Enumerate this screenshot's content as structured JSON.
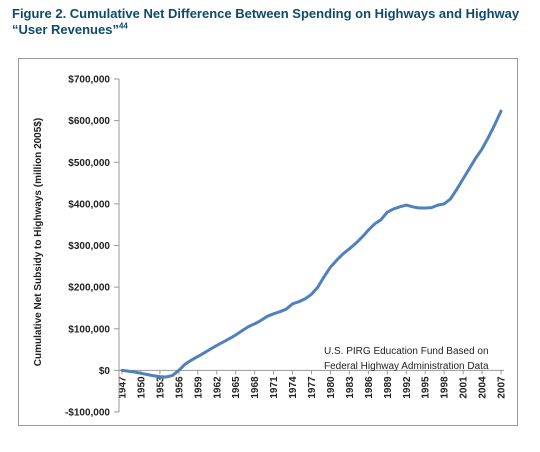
{
  "figure": {
    "title_line1": "Figure 2. Cumulative Net Difference Between Spending on Highways and Highway",
    "title_line2": "“User Revenues”",
    "title_footnote": "44"
  },
  "chart_data": {
    "type": "line",
    "title": "",
    "ylabel": "Cumulative Net Subsidy to Highways (million 2005$)",
    "xlabel": "",
    "ylim": [
      -100000,
      700000
    ],
    "yticks": [
      -100000,
      0,
      100000,
      200000,
      300000,
      400000,
      500000,
      600000,
      700000
    ],
    "ytick_labels": [
      "-$100,000",
      "$0",
      "$100,000",
      "$200,000",
      "$300,000",
      "$400,000",
      "$500,000",
      "$600,000",
      "$700,000"
    ],
    "xlim": [
      1947,
      2007
    ],
    "xticks": [
      1947,
      1950,
      1953,
      1956,
      1959,
      1962,
      1965,
      1968,
      1971,
      1974,
      1977,
      1980,
      1983,
      1986,
      1989,
      1992,
      1995,
      1998,
      2001,
      2004,
      2007
    ],
    "grid": false,
    "line_color": "#4f81bd",
    "annotation": [
      "U.S. PIRG Education Fund Based on",
      "Federal Highway Administration Data"
    ],
    "series": [
      {
        "name": "",
        "x": [
          1947,
          1948,
          1949,
          1950,
          1951,
          1952,
          1953,
          1954,
          1955,
          1956,
          1957,
          1958,
          1959,
          1960,
          1961,
          1962,
          1963,
          1964,
          1965,
          1966,
          1967,
          1968,
          1969,
          1970,
          1971,
          1972,
          1973,
          1974,
          1975,
          1976,
          1977,
          1978,
          1979,
          1980,
          1981,
          1982,
          1983,
          1984,
          1985,
          1986,
          1987,
          1988,
          1989,
          1990,
          1991,
          1992,
          1993,
          1994,
          1995,
          1996,
          1997,
          1998,
          1999,
          2000,
          2001,
          2002,
          2003,
          2004,
          2005,
          2006,
          2007
        ],
        "y": [
          0,
          -2000,
          -4000,
          -7000,
          -10000,
          -13000,
          -15000,
          -16000,
          -12000,
          0,
          15000,
          25000,
          33000,
          42000,
          51000,
          60000,
          68000,
          76000,
          85000,
          95000,
          105000,
          112000,
          120000,
          130000,
          136000,
          141000,
          147000,
          160000,
          165000,
          172000,
          183000,
          200000,
          225000,
          248000,
          265000,
          280000,
          292000,
          305000,
          320000,
          337000,
          352000,
          362000,
          380000,
          388000,
          393000,
          397000,
          393000,
          390000,
          390000,
          391000,
          397000,
          400000,
          412000,
          435000,
          460000,
          485000,
          510000,
          532000,
          560000,
          590000,
          623000
        ]
      }
    ]
  }
}
